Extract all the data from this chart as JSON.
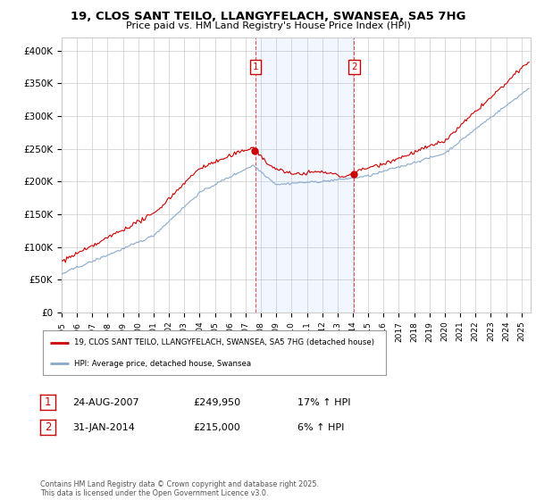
{
  "title": "19, CLOS SANT TEILO, LLANGYFELACH, SWANSEA, SA5 7HG",
  "subtitle": "Price paid vs. HM Land Registry's House Price Index (HPI)",
  "ylim": [
    0,
    420000
  ],
  "yticks": [
    0,
    50000,
    100000,
    150000,
    200000,
    250000,
    300000,
    350000,
    400000
  ],
  "ytick_labels": [
    "£0",
    "£50K",
    "£100K",
    "£150K",
    "£200K",
    "£250K",
    "£300K",
    "£350K",
    "£400K"
  ],
  "background_color": "#ffffff",
  "grid_color": "#cccccc",
  "red_color": "#cc0000",
  "blue_color": "#88aacc",
  "t1_year": 2007.646,
  "t2_year": 2014.083,
  "legend_label_red": "19, CLOS SANT TEILO, LLANGYFELACH, SWANSEA, SA5 7HG (detached house)",
  "legend_label_blue": "HPI: Average price, detached house, Swansea",
  "ann1_date": "24-AUG-2007",
  "ann1_price": "£249,950",
  "ann1_hpi": "17% ↑ HPI",
  "ann2_date": "31-JAN-2014",
  "ann2_price": "£215,000",
  "ann2_hpi": "6% ↑ HPI",
  "footer": "Contains HM Land Registry data © Crown copyright and database right 2025.\nThis data is licensed under the Open Government Licence v3.0."
}
